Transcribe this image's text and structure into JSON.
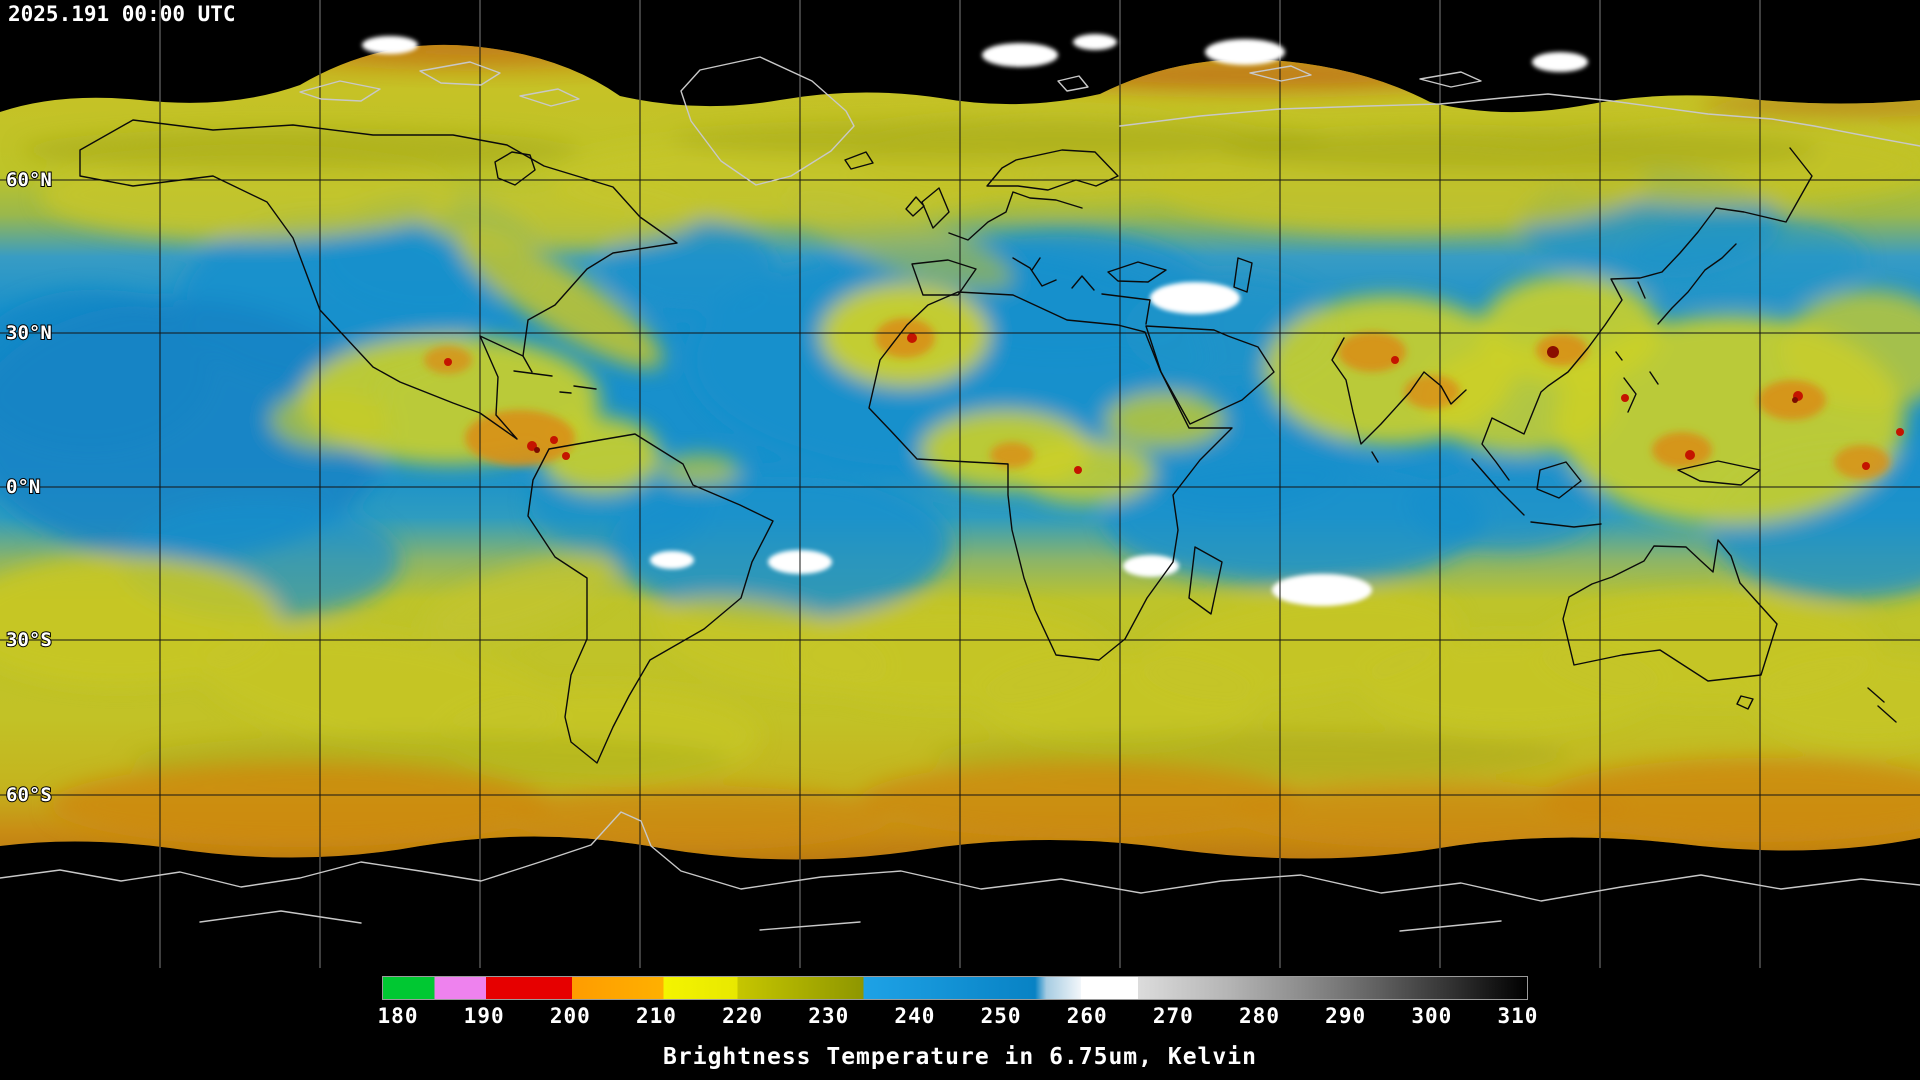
{
  "header": {
    "timestamp": "2025.191 00:00 UTC"
  },
  "map": {
    "latitude_labels": [
      {
        "label": "60°N"
      },
      {
        "label": "30°N"
      },
      {
        "label": "0°N"
      },
      {
        "label": "30°S"
      },
      {
        "label": "60°S"
      }
    ]
  },
  "colorbar": {
    "caption": "Brightness Temperature in 6.75um, Kelvin",
    "unit": "Kelvin",
    "min": 180,
    "max": 310,
    "ticks": [
      "180",
      "190",
      "200",
      "210",
      "220",
      "230",
      "240",
      "250",
      "260",
      "270",
      "280",
      "290",
      "300",
      "310"
    ],
    "stops": [
      {
        "p": 0,
        "c": "#00c832"
      },
      {
        "p": 4.5,
        "c": "#00c832"
      },
      {
        "p": 4.5,
        "c": "#ee82ee"
      },
      {
        "p": 9,
        "c": "#ee82ee"
      },
      {
        "p": 9,
        "c": "#e60000"
      },
      {
        "p": 16.5,
        "c": "#e60000"
      },
      {
        "p": 16.5,
        "c": "#ff9c00"
      },
      {
        "p": 24.5,
        "c": "#ffb000"
      },
      {
        "p": 24.5,
        "c": "#f4f400"
      },
      {
        "p": 31,
        "c": "#e8e800"
      },
      {
        "p": 31,
        "c": "#c6c600"
      },
      {
        "p": 42,
        "c": "#8e9600"
      },
      {
        "p": 42,
        "c": "#1ea2e6"
      },
      {
        "p": 57,
        "c": "#0882c4"
      },
      {
        "p": 58,
        "c": "#a6cce2"
      },
      {
        "p": 61,
        "c": "#f2f6fa"
      },
      {
        "p": 61,
        "c": "#ffffff"
      },
      {
        "p": 66,
        "c": "#ffffff"
      },
      {
        "p": 66,
        "c": "#dcdcdc"
      },
      {
        "p": 74,
        "c": "#b4b4b4"
      },
      {
        "p": 83,
        "c": "#7c7c7c"
      },
      {
        "p": 92,
        "c": "#3c3c3c"
      },
      {
        "p": 100,
        "c": "#000000"
      }
    ],
    "accent_colors": {
      "cold_green": "#00c832",
      "cold_magenta": "#ee82ee",
      "cold_red": "#e60000",
      "cold_orange": "#ff9c00",
      "cold_yellow": "#f4f400",
      "mid_blue": "#1ea2e6",
      "warm_white": "#ffffff",
      "warm_black": "#000000"
    }
  }
}
